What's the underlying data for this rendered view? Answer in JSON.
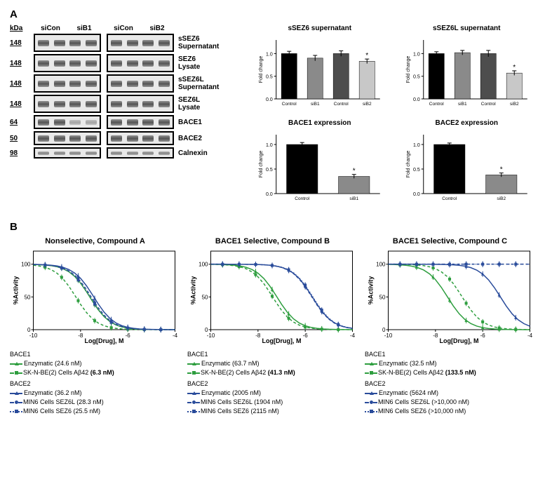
{
  "panelA": {
    "label": "A",
    "kdaHeader": "kDa",
    "laneLabels": [
      "siCon",
      "siB1",
      "siCon",
      "siB2"
    ],
    "rows": [
      {
        "kda": "148",
        "label": "sSEZ6\nSupernatant",
        "h": 26
      },
      {
        "kda": "148",
        "label": "SEZ6\nLysate",
        "h": 26
      },
      {
        "kda": "148",
        "label": "sSEZ6L\nSupernatant",
        "h": 26
      },
      {
        "kda": "148",
        "label": "SEZ6L\nLysate",
        "h": 26
      },
      {
        "kda": "64",
        "label": "BACE1",
        "h": 20
      },
      {
        "kda": "50",
        "label": "BACE2",
        "h": 20
      },
      {
        "kda": "98",
        "label": "Calnexin",
        "h": 16
      }
    ],
    "barCharts": [
      {
        "title": "sSEZ6 supernatant",
        "ylabel": "Fold change",
        "ymax": 1.3,
        "bars": [
          {
            "label": "Control",
            "v": 1.0,
            "err": 0.05,
            "color": "#000000"
          },
          {
            "label": "siB1",
            "v": 0.9,
            "err": 0.06,
            "color": "#8a8a8a"
          },
          {
            "label": "Control",
            "v": 1.0,
            "err": 0.06,
            "color": "#4d4d4d"
          },
          {
            "label": "siB2",
            "v": 0.83,
            "err": 0.05,
            "color": "#c8c8c8",
            "star": true
          }
        ]
      },
      {
        "title": "sSEZ6L supernatant",
        "ylabel": "Fold change",
        "ymax": 1.3,
        "bars": [
          {
            "label": "Control",
            "v": 1.0,
            "err": 0.04,
            "color": "#000000"
          },
          {
            "label": "siB1",
            "v": 1.02,
            "err": 0.05,
            "color": "#8a8a8a"
          },
          {
            "label": "Control",
            "v": 1.0,
            "err": 0.07,
            "color": "#4d4d4d"
          },
          {
            "label": "siB2",
            "v": 0.57,
            "err": 0.05,
            "color": "#c8c8c8",
            "star": true
          }
        ]
      },
      {
        "title": "BACE1 expression",
        "ylabel": "Fold change",
        "ymax": 1.2,
        "bars": [
          {
            "label": "Control",
            "v": 1.0,
            "err": 0.04,
            "color": "#000000"
          },
          {
            "label": "siB1",
            "v": 0.35,
            "err": 0.04,
            "color": "#8a8a8a",
            "star": true
          }
        ]
      },
      {
        "title": "BACE2 expression",
        "ylabel": "Fold change",
        "ymax": 1.2,
        "bars": [
          {
            "label": "Control",
            "v": 1.0,
            "err": 0.03,
            "color": "#000000"
          },
          {
            "label": "siB2",
            "v": 0.38,
            "err": 0.04,
            "color": "#8a8a8a",
            "star": true
          }
        ]
      }
    ]
  },
  "panelB": {
    "label": "B",
    "xlabel": "Log[Drug], M",
    "ylabel": "%Activity",
    "xlim": [
      -10,
      -4
    ],
    "ylim": [
      0,
      120
    ],
    "yticks": [
      0,
      50,
      100
    ],
    "colors": {
      "green": "#2e9e3f",
      "blue": "#2a4c9b"
    },
    "curves": [
      {
        "title": "Nonselective, Compound A",
        "series": [
          {
            "name": "BACE1 Enzymatic",
            "color": "green",
            "dash": "solid",
            "marker": "tri",
            "logIC50": -7.61
          },
          {
            "name": "BACE1 SK-N-BE(2) Aβ42",
            "color": "green",
            "dash": "dash",
            "marker": "sq",
            "logIC50": -8.2
          },
          {
            "name": "BACE2 Enzymatic",
            "color": "blue",
            "dash": "solid",
            "marker": "tri",
            "logIC50": -7.44
          },
          {
            "name": "BACE2 MIN6 SEZ6L",
            "color": "blue",
            "dash": "dash",
            "marker": "ci",
            "logIC50": -7.55
          },
          {
            "name": "BACE2 MIN6 SEZ6",
            "color": "blue",
            "dash": "dot",
            "marker": "sq",
            "logIC50": -7.59
          }
        ],
        "legend": {
          "bace1Header": "BACE1",
          "bace1": [
            {
              "text": "Enzymatic (24.6 nM)",
              "color": "green",
              "dash": "solid",
              "marker": "tri"
            },
            {
              "text": "SK-N-BE(2) Cells Aβ42 (6.3 nM)",
              "bold": "(6.3 nM)",
              "color": "green",
              "dash": "dash",
              "marker": "sq"
            }
          ],
          "bace2Header": "BACE2",
          "bace2": [
            {
              "text": "Enzymatic (36.2 nM)",
              "color": "blue",
              "dash": "solid",
              "marker": "tri"
            },
            {
              "text": "MIN6 Cells SEZ6L (28.3 nM)",
              "color": "blue",
              "dash": "dash",
              "marker": "ci"
            },
            {
              "text": "MIN6 Cells SEZ6 (25.5 nM)",
              "color": "blue",
              "dash": "dot",
              "marker": "sq"
            }
          ]
        }
      },
      {
        "title": "BACE1 Selective, Compound B",
        "series": [
          {
            "name": "BACE1 Enzymatic",
            "color": "green",
            "dash": "solid",
            "marker": "tri",
            "logIC50": -7.2
          },
          {
            "name": "BACE1 SK-N-BE(2) Aβ42",
            "color": "green",
            "dash": "dash",
            "marker": "sq",
            "logIC50": -7.38
          },
          {
            "name": "BACE2 Enzymatic",
            "color": "blue",
            "dash": "solid",
            "marker": "tri",
            "logIC50": -5.7
          },
          {
            "name": "BACE2 MIN6 SEZ6L",
            "color": "blue",
            "dash": "dash",
            "marker": "ci",
            "logIC50": -5.72
          },
          {
            "name": "BACE2 MIN6 SEZ6",
            "color": "blue",
            "dash": "dot",
            "marker": "sq",
            "logIC50": -5.67
          }
        ],
        "legend": {
          "bace1Header": "BACE1",
          "bace1": [
            {
              "text": "Enzymatic (63.7 nM)",
              "color": "green",
              "dash": "solid",
              "marker": "tri"
            },
            {
              "text": "SK-N-BE(2) Cells Aβ42 (41.3 nM)",
              "bold": "(41.3 nM)",
              "color": "green",
              "dash": "dash",
              "marker": "sq"
            }
          ],
          "bace2Header": "BACE2",
          "bace2": [
            {
              "text": "Enzymatic (2005 nM)",
              "color": "blue",
              "dash": "solid",
              "marker": "tri"
            },
            {
              "text": "MIN6 Cells SEZ6L (1904 nM)",
              "color": "blue",
              "dash": "dash",
              "marker": "ci"
            },
            {
              "text": "MIN6 Cells SEZ6 (2115 nM)",
              "color": "blue",
              "dash": "dot",
              "marker": "sq"
            }
          ]
        }
      },
      {
        "title": "BACE1 Selective, Compound C",
        "series": [
          {
            "name": "BACE1 Enzymatic",
            "color": "green",
            "dash": "solid",
            "marker": "tri",
            "logIC50": -7.49
          },
          {
            "name": "BACE1 SK-N-BE(2) Aβ42",
            "color": "green",
            "dash": "dash",
            "marker": "sq",
            "logIC50": -6.87
          },
          {
            "name": "BACE2 Enzymatic",
            "color": "blue",
            "dash": "solid",
            "marker": "tri",
            "logIC50": -5.25
          },
          {
            "name": "BACE2 MIN6 SEZ6L",
            "color": "blue",
            "dash": "dash",
            "marker": "ci",
            "logIC50": -4.0,
            "flat": true
          },
          {
            "name": "BACE2 MIN6 SEZ6",
            "color": "blue",
            "dash": "dot",
            "marker": "sq",
            "logIC50": -4.0,
            "flat": true
          }
        ],
        "legend": {
          "bace1Header": "BACE1",
          "bace1": [
            {
              "text": "Enzymatic (32.5 nM)",
              "color": "green",
              "dash": "solid",
              "marker": "tri"
            },
            {
              "text": "SK-N-BE(2) Cells Aβ42 (133.5 nM)",
              "bold": "(133.5 nM)",
              "color": "green",
              "dash": "dash",
              "marker": "sq"
            }
          ],
          "bace2Header": "BACE2",
          "bace2": [
            {
              "text": "Enzymatic (5624 nM)",
              "color": "blue",
              "dash": "solid",
              "marker": "tri"
            },
            {
              "text": "MIN6 Cells SEZ6L (>10,000 nM)",
              "color": "blue",
              "dash": "dash",
              "marker": "ci"
            },
            {
              "text": "MIN6 Cells SEZ6 (>10,000 nM)",
              "color": "blue",
              "dash": "dot",
              "marker": "sq"
            }
          ]
        }
      }
    ]
  }
}
